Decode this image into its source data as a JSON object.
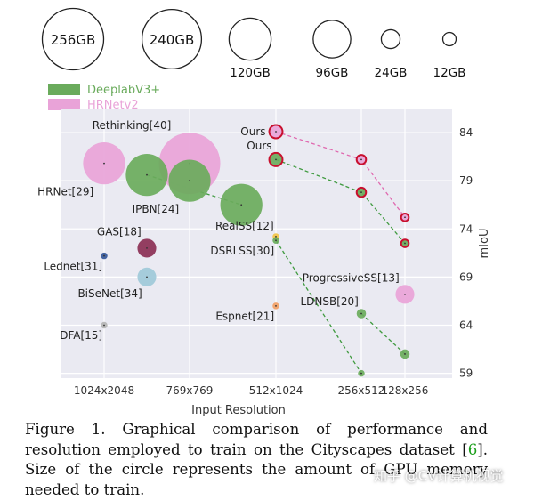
{
  "chart_data": {
    "type": "bubble-scatter",
    "xlabel": "Input Resolution",
    "ylabel": "mIoU",
    "categories": [
      "1024x2048",
      "769x769",
      "512x1024",
      "256x512",
      "128x256"
    ],
    "yticks": [
      59,
      64,
      69,
      74,
      79,
      84
    ],
    "ylim": [
      58.5,
      86.5
    ],
    "legend": [
      {
        "name": "DeeplabV3+",
        "color": "#6aab5c"
      },
      {
        "name": "HRNetv2",
        "color": "#e9a3d8"
      }
    ],
    "size_legend": [
      {
        "label": "256GB",
        "gb": 256
      },
      {
        "label": "240GB",
        "gb": 240
      },
      {
        "label": "120GB",
        "gb": 120
      },
      {
        "label": "96GB",
        "gb": 96
      },
      {
        "label": "24GB",
        "gb": 24
      },
      {
        "label": "12GB",
        "gb": 12
      }
    ],
    "points": [
      {
        "label": "HRNet[29]",
        "x": 0.0,
        "y": 80.8,
        "gb": 120,
        "color": "#e9a3d8",
        "label_pos": "below-left"
      },
      {
        "label": "Rethinking[40]",
        "x": 1.0,
        "y": 80.8,
        "gb": 256,
        "color": "#e9a3d8",
        "label_pos": "above-left"
      },
      {
        "label": "",
        "x": 0.5,
        "y": 79.6,
        "gb": 120,
        "color": "#6aab5c",
        "label_pos": ""
      },
      {
        "label": "IPBN[24]",
        "x": 1.0,
        "y": 79.0,
        "gb": 120,
        "color": "#6aab5c",
        "label_pos": "below-left"
      },
      {
        "label": "",
        "x": 1.6,
        "y": 76.5,
        "gb": 120,
        "color": "#6aab5c",
        "label_pos": ""
      },
      {
        "label": "GAS[18]",
        "x": 0.5,
        "y": 72.0,
        "gb": 24,
        "color": "#8b2f55",
        "label_pos": "above-left"
      },
      {
        "label": "Lednet[31]",
        "x": 0.0,
        "y": 71.2,
        "gb": 3,
        "color": "#35589b",
        "label_pos": "below-left"
      },
      {
        "label": "BiSeNet[34]",
        "x": 0.5,
        "y": 69.0,
        "gb": 24,
        "color": "#9ec9d9",
        "label_pos": "below-left"
      },
      {
        "label": "DFA[15]",
        "x": 0.0,
        "y": 64.0,
        "gb": 3,
        "color": "#b5b5b5",
        "label_pos": "below-left"
      },
      {
        "label": "RealSS[12]",
        "x": 2.0,
        "y": 73.2,
        "gb": 3,
        "color": "#f2c447",
        "label_pos": "above-left"
      },
      {
        "label": "DSRLSS[30]",
        "x": 2.0,
        "y": 72.8,
        "gb": 3,
        "color": "#6aab5c",
        "label_pos": "below-left"
      },
      {
        "label": "Espnet[21]",
        "x": 2.0,
        "y": 66.0,
        "gb": 3,
        "color": "#f2a066",
        "label_pos": "below-left"
      },
      {
        "label": "Ours",
        "x": 2.0,
        "y": 84.1,
        "gb": 12,
        "color": "#e9a3d8",
        "label_pos": "left",
        "ring": true
      },
      {
        "label": "Ours",
        "x": 2.0,
        "y": 81.2,
        "gb": 12,
        "color": "#6aab5c",
        "label_pos": "above-left",
        "ring": true
      },
      {
        "label": "",
        "x": 3.0,
        "y": 81.2,
        "gb": 6,
        "color": "#e9a3d8",
        "label_pos": "",
        "ring": true
      },
      {
        "label": "",
        "x": 3.0,
        "y": 77.8,
        "gb": 6,
        "color": "#6aab5c",
        "label_pos": "",
        "ring": true
      },
      {
        "label": "",
        "x": 4.0,
        "y": 75.2,
        "gb": 4,
        "color": "#e9a3d8",
        "label_pos": "",
        "ring": true
      },
      {
        "label": "",
        "x": 4.0,
        "y": 72.5,
        "gb": 4,
        "color": "#6aab5c",
        "label_pos": "",
        "ring": true
      },
      {
        "label": "ProgressiveSS[13]",
        "x": 4.0,
        "y": 67.2,
        "gb": 24,
        "color": "#e9a3d8",
        "label_pos": "above-left"
      },
      {
        "label": "LDNSB[20]",
        "x": 3.0,
        "y": 65.2,
        "gb": 6,
        "color": "#6aab5c",
        "label_pos": "above-left"
      },
      {
        "label": "",
        "x": 4.0,
        "y": 61.0,
        "gb": 6,
        "color": "#6aab5c",
        "label_pos": ""
      },
      {
        "label": "",
        "x": 3.0,
        "y": 59.0,
        "gb": 3,
        "color": "#6aab5c",
        "label_pos": ""
      }
    ],
    "dashed_lines": [
      {
        "color": "#3f9a3f",
        "points": [
          [
            0.5,
            79.6
          ],
          [
            1.6,
            76.5
          ]
        ]
      },
      {
        "color": "#3f9a3f",
        "points": [
          [
            2.0,
            72.8
          ],
          [
            3.0,
            59.0
          ]
        ]
      },
      {
        "color": "#3f9a3f",
        "points": [
          [
            2.0,
            81.2
          ],
          [
            3.0,
            77.8
          ],
          [
            4.0,
            72.5
          ]
        ]
      },
      {
        "color": "#e06ab0",
        "points": [
          [
            2.0,
            84.1
          ],
          [
            3.0,
            81.2
          ],
          [
            4.0,
            75.2
          ]
        ]
      },
      {
        "color": "#3f9a3f",
        "points": [
          [
            3.0,
            65.2
          ],
          [
            4.0,
            61.0
          ]
        ]
      }
    ]
  },
  "caption": {
    "prefix": "Figure 1.  Graphical comparison of performance and resolution employed to train on the Cityscapes dataset [",
    "cite": "6",
    "suffix": "]. Size of the circle represents the amount of GPU memory needed to train."
  },
  "watermark": "知乎 @CV计算机视觉"
}
